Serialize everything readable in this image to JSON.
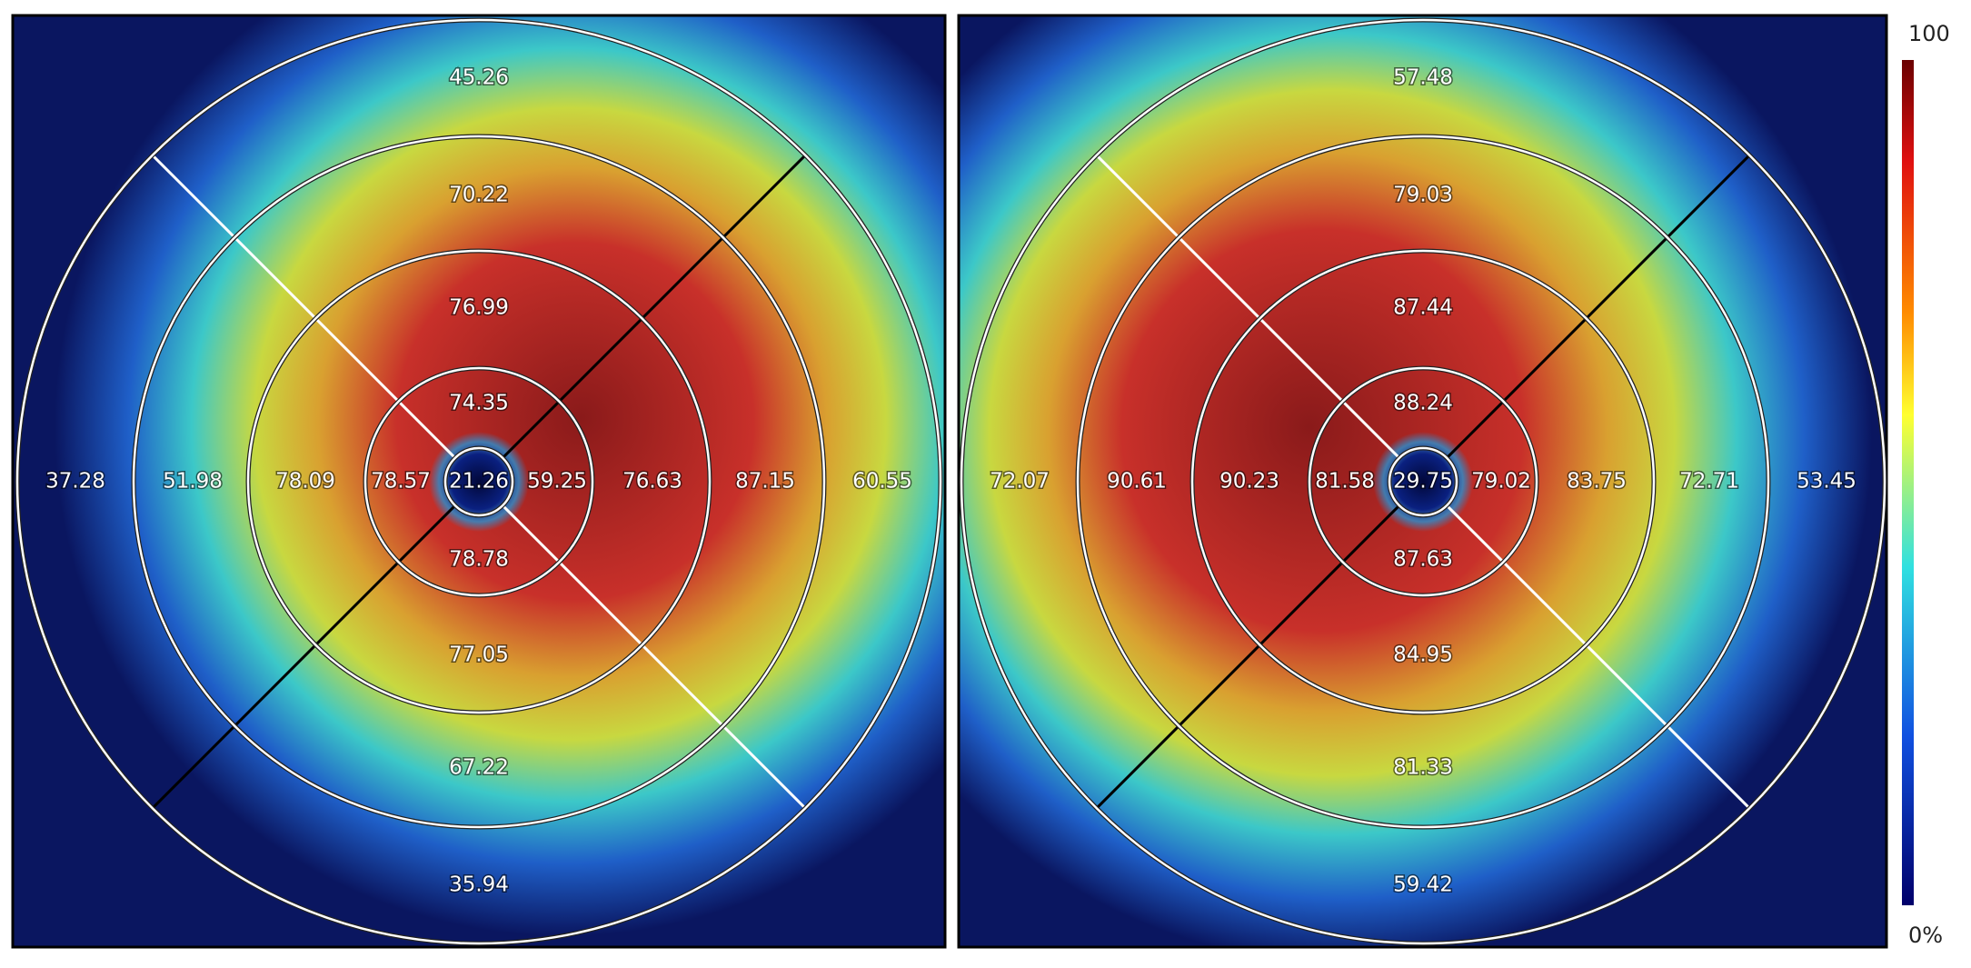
{
  "panels": [
    {
      "center": "21.26",
      "superior": [
        "74.35",
        "76.99",
        "70.22",
        "45.26"
      ],
      "inferior": [
        "78.78",
        "77.05",
        "67.22",
        "35.94"
      ],
      "left": [
        "78.57",
        "78.09",
        "51.98",
        "37.28"
      ],
      "right": [
        "59.25",
        "76.63",
        "87.15",
        "60.55"
      ]
    },
    {
      "center": "29.75",
      "superior": [
        "88.24",
        "87.44",
        "79.03",
        "57.48"
      ],
      "inferior": [
        "87.63",
        "84.95",
        "81.33",
        "59.42"
      ],
      "left": [
        "81.58",
        "90.23",
        "90.61",
        "72.07"
      ],
      "right": [
        "79.02",
        "83.75",
        "72.71",
        "53.45"
      ]
    }
  ],
  "colorbar": {
    "max_label": "100",
    "min_label": "0%"
  }
}
